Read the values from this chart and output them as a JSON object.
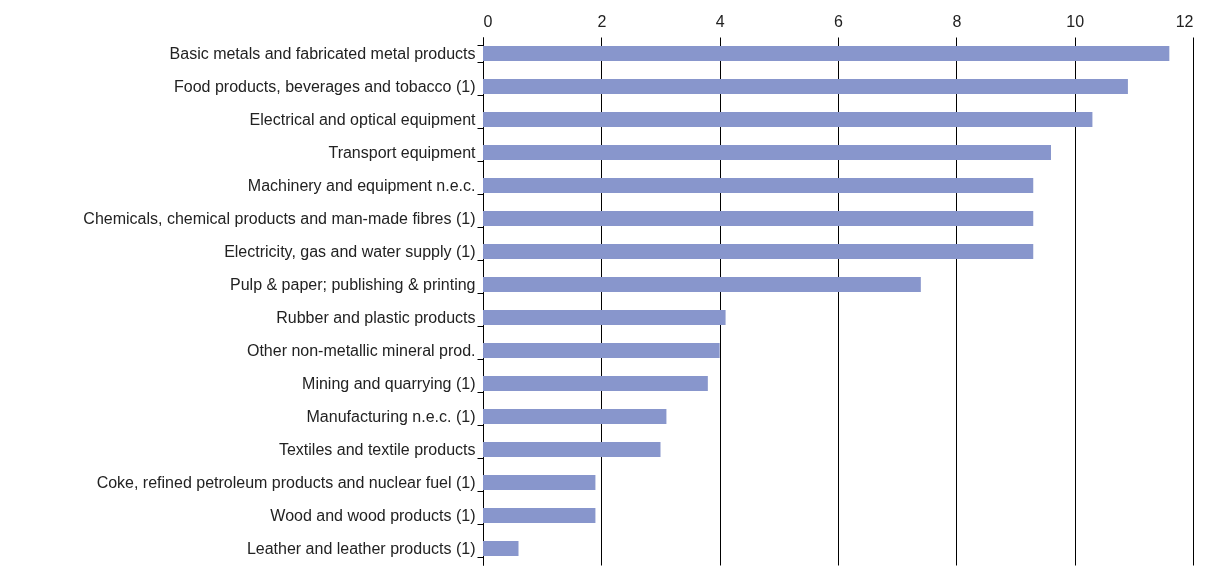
{
  "chart_data": {
    "type": "bar",
    "orientation": "horizontal",
    "categories": [
      "Basic metals and fabricated metal products",
      "Food products, beverages and tobacco (1)",
      "Electrical and optical equipment",
      "Transport equipment",
      "Machinery and equipment n.e.c.",
      "Chemicals, chemical products and man-made fibres (1)",
      "Electricity, gas and water supply (1)",
      "Pulp & paper; publishing & printing",
      "Rubber and plastic products",
      "Other non-metallic mineral prod.",
      "Mining and quarrying (1)",
      "Manufacturing n.e.c. (1)",
      "Textiles and textile products",
      "Coke, refined petroleum products and nuclear fuel (1)",
      "Wood and wood products (1)",
      "Leather and leather products (1)"
    ],
    "values": [
      11.6,
      10.9,
      10.3,
      9.6,
      9.3,
      9.3,
      9.3,
      7.4,
      4.1,
      4.0,
      3.8,
      3.1,
      3.0,
      1.9,
      1.9,
      0.6
    ],
    "color": "#8896cc",
    "xlim": [
      0,
      12
    ],
    "xticks": [
      0,
      2,
      4,
      6,
      8,
      10,
      12
    ],
    "grid": "x"
  }
}
